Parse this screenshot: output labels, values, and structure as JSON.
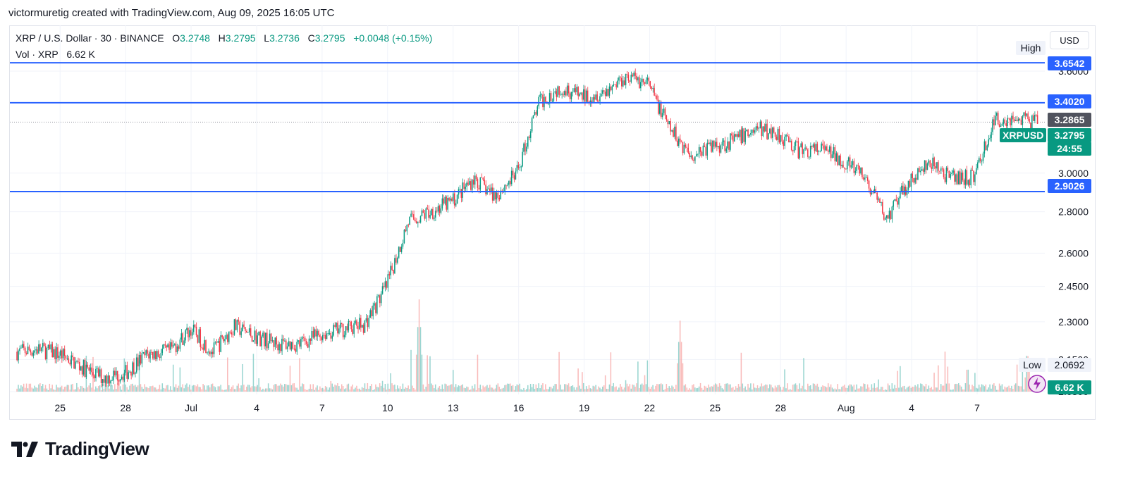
{
  "credit": "victormuretig created with TradingView.com, Aug 09, 2025 16:05 UTC",
  "legend": {
    "symbol": "XRP / U.S. Dollar · 30 · BINANCE",
    "o_label": "O",
    "o_value": "3.2748",
    "h_label": "H",
    "h_value": "3.2795",
    "l_label": "L",
    "l_value": "3.2736",
    "c_label": "C",
    "c_value": "3.2795",
    "change": "+0.0048 (+0.15%)",
    "vol_label": "Vol · XRP",
    "vol_value": "6.62 K"
  },
  "currency": "USD",
  "tags": {
    "high_label": "High",
    "high_level": "3.6542",
    "level_340": "3.4020",
    "last_price": "3.2865",
    "symbol": "XRPUSD",
    "close_price": "3.2795",
    "countdown": "24:55",
    "level_290": "2.9026",
    "low_label": "Low",
    "low_level": "2.0692",
    "volume": "6.62 K"
  },
  "colors": {
    "up": "#089981",
    "down": "#f23645",
    "level_line": "#2962ff",
    "grid": "#f0f3fa"
  },
  "footer_brand": "TradingView",
  "chart_data": {
    "type": "candlestick",
    "symbol": "XRPUSD",
    "interval": "30",
    "scale": "log",
    "ylim": [
      2.03,
      3.65
    ],
    "y_ticks": [
      3.6,
      3.0,
      2.8,
      2.6,
      2.45,
      2.3,
      2.15,
      2.03
    ],
    "x_ticks": [
      "25",
      "28",
      "Jul",
      "4",
      "7",
      "10",
      "13",
      "16",
      "19",
      "22",
      "25",
      "28",
      "Aug",
      "4",
      "7"
    ],
    "horizontal_levels": [
      3.6542,
      3.402,
      2.9026
    ],
    "last_price_line": 3.2865,
    "price_path": [
      {
        "x": "Jun 23",
        "y": 2.18
      },
      {
        "x": "Jun 24",
        "y": 2.19
      },
      {
        "x": "Jun 25",
        "y": 2.17
      },
      {
        "x": "Jun 26",
        "y": 2.12
      },
      {
        "x": "Jun 27",
        "y": 2.08
      },
      {
        "x": "Jun 28",
        "y": 2.1
      },
      {
        "x": "Jun 29",
        "y": 2.17
      },
      {
        "x": "Jun 30",
        "y": 2.18
      },
      {
        "x": "Jul 1",
        "y": 2.27
      },
      {
        "x": "Jul 2",
        "y": 2.18
      },
      {
        "x": "Jul 3",
        "y": 2.28
      },
      {
        "x": "Jul 4",
        "y": 2.24
      },
      {
        "x": "Jul 5",
        "y": 2.21
      },
      {
        "x": "Jul 6",
        "y": 2.21
      },
      {
        "x": "Jul 7",
        "y": 2.25
      },
      {
        "x": "Jul 8",
        "y": 2.27
      },
      {
        "x": "Jul 9",
        "y": 2.29
      },
      {
        "x": "Jul 10",
        "y": 2.45
      },
      {
        "x": "Jul 11",
        "y": 2.75
      },
      {
        "x": "Jul 12",
        "y": 2.8
      },
      {
        "x": "Jul 13",
        "y": 2.85
      },
      {
        "x": "Jul 14",
        "y": 2.97
      },
      {
        "x": "Jul 15",
        "y": 2.88
      },
      {
        "x": "Jul 16",
        "y": 3.0
      },
      {
        "x": "Jul 17",
        "y": 3.4
      },
      {
        "x": "Jul 18",
        "y": 3.5
      },
      {
        "x": "Jul 19",
        "y": 3.44
      },
      {
        "x": "Jul 20",
        "y": 3.47
      },
      {
        "x": "Jul 21",
        "y": 3.57
      },
      {
        "x": "Jul 22",
        "y": 3.52
      },
      {
        "x": "Jul 23",
        "y": 3.25
      },
      {
        "x": "Jul 24",
        "y": 3.1
      },
      {
        "x": "Jul 25",
        "y": 3.15
      },
      {
        "x": "Jul 26",
        "y": 3.18
      },
      {
        "x": "Jul 27",
        "y": 3.25
      },
      {
        "x": "Jul 28",
        "y": 3.22
      },
      {
        "x": "Jul 29",
        "y": 3.12
      },
      {
        "x": "Jul 30",
        "y": 3.13
      },
      {
        "x": "Jul 31",
        "y": 3.07
      },
      {
        "x": "Aug 1",
        "y": 2.97
      },
      {
        "x": "Aug 2",
        "y": 2.76
      },
      {
        "x": "Aug 3",
        "y": 2.95
      },
      {
        "x": "Aug 4",
        "y": 3.05
      },
      {
        "x": "Aug 5",
        "y": 2.97
      },
      {
        "x": "Aug 6",
        "y": 2.98
      },
      {
        "x": "Aug 7",
        "y": 3.3
      },
      {
        "x": "Aug 8",
        "y": 3.31
      },
      {
        "x": "Aug 9",
        "y": 3.28
      }
    ],
    "volume_ylim": [
      0,
      130
    ],
    "volume_spikes": [
      {
        "x": "Jul 11",
        "y": 130
      },
      {
        "x": "Jul 23",
        "y": 100
      },
      {
        "x": "Aug 8",
        "y": 50
      }
    ]
  }
}
